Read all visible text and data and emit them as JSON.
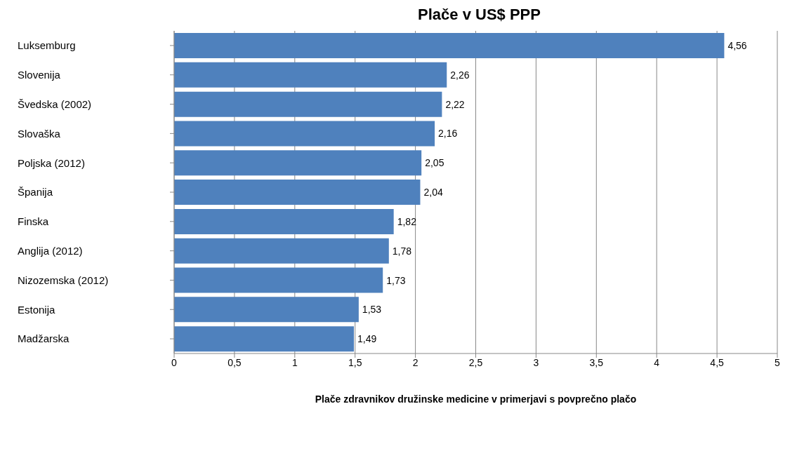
{
  "chart_data": {
    "type": "bar",
    "orientation": "horizontal",
    "title": "Plače v US$ PPP",
    "xlabel": "Plače zdravnikov družinske medicine v primerjavi s povprečno plačo",
    "categories": [
      "Luksemburg",
      "Slovenija",
      "Švedska (2002)",
      "Slovaška",
      "Poljska (2012)",
      "Španija",
      "Finska",
      "Anglija (2012)",
      "Nizozemska (2012)",
      "Estonija",
      "Madžarska"
    ],
    "values": [
      4.56,
      2.26,
      2.22,
      2.16,
      2.05,
      2.04,
      1.82,
      1.78,
      1.73,
      1.53,
      1.49
    ],
    "value_labels": [
      "4,56",
      "2,26",
      "2,22",
      "2,16",
      "2,05",
      "2,04",
      "1,82",
      "1,78",
      "1,73",
      "1,53",
      "1,49"
    ],
    "color": "#4f81bd",
    "xlim": [
      0,
      5
    ],
    "xticks": [
      0,
      {
        "value": 0.5,
        "label": "0,5"
      },
      1,
      {
        "value": 1.5,
        "label": "1,5"
      },
      2,
      {
        "value": 2.5,
        "label": "2,5"
      },
      3,
      {
        "value": 3.5,
        "label": "3,5"
      },
      4,
      {
        "value": 4.5,
        "label": "4,5"
      },
      5
    ],
    "grid": "x"
  }
}
